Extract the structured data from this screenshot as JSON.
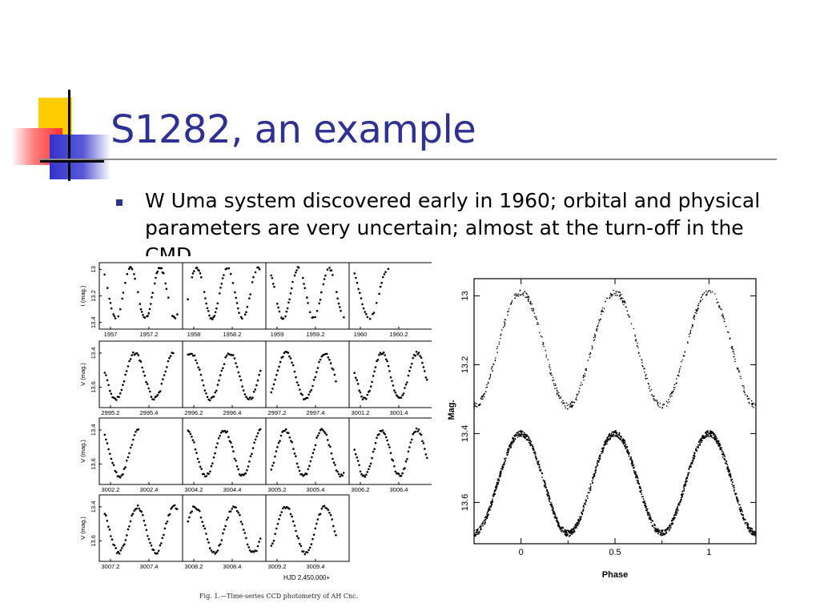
{
  "slide": {
    "title": "S1282, an example",
    "bullet": "W Uma system discovered early in 1960; orbital and physical parameters are very uncertain; almost at the turn-off in the CMD",
    "caption": "Fig. 1.—Time-series CCD photometry of AH Cnc.",
    "colors": {
      "title": "#2e3192",
      "deco_yellow": "#ffcc00",
      "deco_red": "#ff3333",
      "deco_blue": "#3333cc"
    }
  },
  "chart_data": [
    {
      "type": "scatter",
      "title": "",
      "xlabel": "HJD 2,450,000+",
      "panels": [
        {
          "row": 0,
          "ylabel": "I (mag.)",
          "yticks": [
            "13",
            "13.2",
            "13.4"
          ],
          "ylim": [
            13.45,
            12.95
          ],
          "xticks": [
            "1957",
            "1957.2"
          ],
          "phase_start": 0.55,
          "phase_span": 1.25
        },
        {
          "row": 0,
          "yticks": [],
          "ylim": [
            13.45,
            12.95
          ],
          "xticks": [
            "1958",
            "1958.2"
          ],
          "phase_start": 0.85,
          "phase_span": 1.2
        },
        {
          "row": 0,
          "yticks": [],
          "ylim": [
            13.45,
            12.95
          ],
          "xticks": [
            "1959",
            "1959.2"
          ],
          "phase_start": 0.05,
          "phase_span": 1.2
        },
        {
          "row": 0,
          "yticks": [],
          "ylim": [
            13.45,
            12.95
          ],
          "xticks": [
            "1960",
            "1960.2"
          ],
          "phase_start": 0.55,
          "phase_span": 0.45
        },
        {
          "row": 1,
          "ylabel": "V (mag.)",
          "yticks": [
            "13.4",
            "13.6"
          ],
          "ylim": [
            13.72,
            13.33
          ],
          "xticks": [
            "2995.2",
            "2995.4"
          ],
          "phase_start": 0.1,
          "phase_span": 0.9
        },
        {
          "row": 1,
          "yticks": [],
          "ylim": [
            13.72,
            13.33
          ],
          "xticks": [
            "2996.2",
            "2996.4"
          ],
          "phase_start": 0.45,
          "phase_span": 0.95
        },
        {
          "row": 1,
          "yticks": [],
          "ylim": [
            13.72,
            13.33
          ],
          "xticks": [
            "2997.2",
            "2997.4"
          ],
          "phase_start": 0.8,
          "phase_span": 0.85
        },
        {
          "row": 1,
          "yticks": [],
          "ylim": [
            13.72,
            13.33
          ],
          "xticks": [
            "3001.2",
            "3001.4"
          ],
          "phase_start": 0.1,
          "phase_span": 1.05
        },
        {
          "row": 2,
          "ylabel": "V (mag.)",
          "yticks": [
            "13.4",
            "13.6"
          ],
          "ylim": [
            13.72,
            13.33
          ],
          "xticks": [
            "3002.2",
            "3002.4"
          ],
          "phase_start": 0.55,
          "phase_span": 0.45
        },
        {
          "row": 2,
          "yticks": [],
          "ylim": [
            13.72,
            13.33
          ],
          "xticks": [
            "3004.2",
            "3004.4"
          ],
          "phase_start": 0.0,
          "phase_span": 1.0
        },
        {
          "row": 2,
          "yticks": [],
          "ylim": [
            13.72,
            13.33
          ],
          "xticks": [
            "3005.2",
            "3005.4"
          ],
          "phase_start": 0.3,
          "phase_span": 1.0
        },
        {
          "row": 2,
          "yticks": [],
          "ylim": [
            13.72,
            13.33
          ],
          "xticks": [
            "3006.2",
            "3006.4"
          ],
          "phase_start": 0.6,
          "phase_span": 1.05
        },
        {
          "row": 3,
          "ylabel": "V (mag.)",
          "yticks": [
            "13.4",
            "13.6"
          ],
          "ylim": [
            13.72,
            13.33
          ],
          "xticks": [
            "3007.2",
            "3007.4"
          ],
          "phase_start": 0.05,
          "phase_span": 1.0
        },
        {
          "row": 3,
          "yticks": [],
          "ylim": [
            13.72,
            13.33
          ],
          "xticks": [
            "3008.2",
            "3008.4"
          ],
          "phase_start": 0.4,
          "phase_span": 0.95
        },
        {
          "row": 3,
          "yticks": [],
          "ylim": [
            13.72,
            13.33
          ],
          "xticks": [
            "3009.2",
            "3009.4"
          ],
          "phase_start": 0.8,
          "phase_span": 0.85
        }
      ]
    },
    {
      "type": "scatter",
      "title": "",
      "xlabel": "Phase",
      "ylabel": "Mag.",
      "xlim": [
        -0.25,
        1.25
      ],
      "ylim": [
        13.72,
        12.95
      ],
      "xticks": [
        "0",
        "0.5",
        "1"
      ],
      "xtick_values": [
        0,
        0.5,
        1
      ],
      "yticks": [
        "13",
        "13.2",
        "13.4",
        "13.6"
      ],
      "ytick_values": [
        13.0,
        13.2,
        13.4,
        13.6
      ],
      "series": [
        {
          "max_mag": 12.99,
          "min_mag": 13.32
        },
        {
          "max_mag": 13.4,
          "min_mag": 13.69
        }
      ]
    }
  ]
}
